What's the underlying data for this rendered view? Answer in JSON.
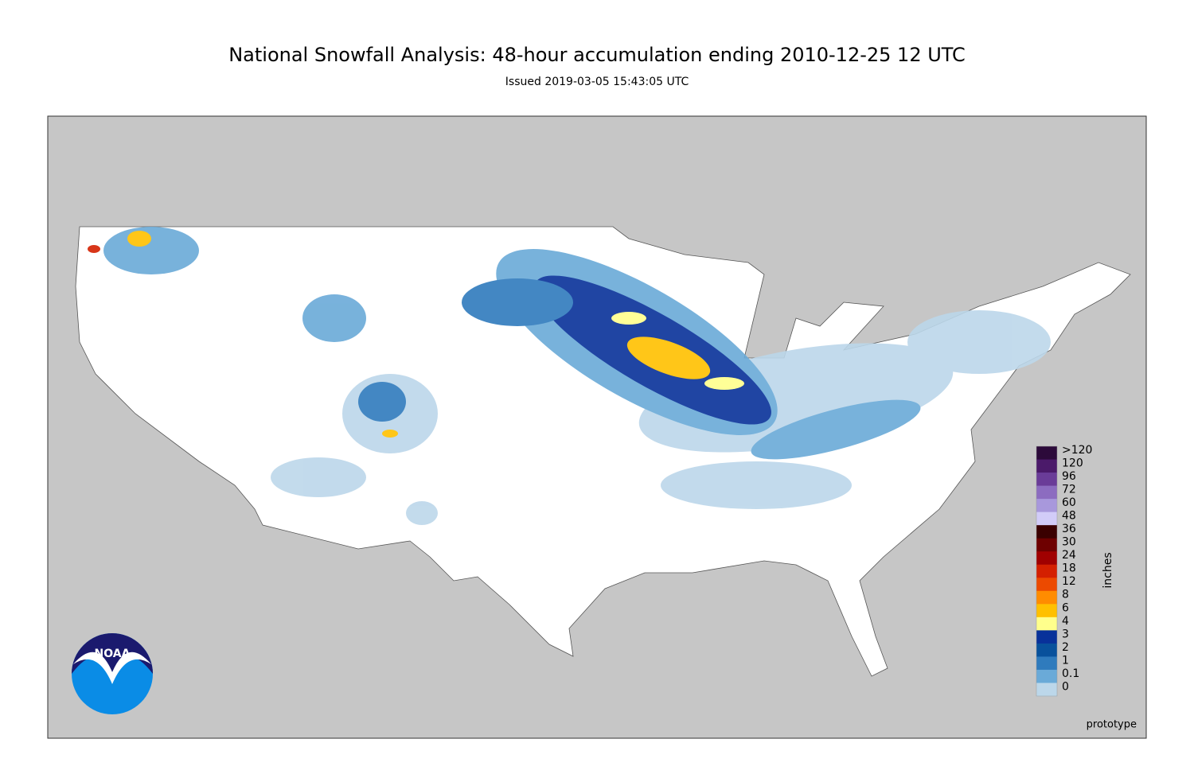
{
  "header": {
    "title": "National Snowfall Analysis: 48-hour accumulation ending 2010-12-25 12 UTC",
    "subtitle": "Issued 2019-03-05 15:43:05 UTC"
  },
  "legend": {
    "unit": "inches",
    "levels": [
      {
        "label": ">120",
        "color": "#2c0a3a"
      },
      {
        "label": "120",
        "color": "#4b1a6a"
      },
      {
        "label": "96",
        "color": "#6a3c98"
      },
      {
        "label": "72",
        "color": "#8c6cc0"
      },
      {
        "label": "60",
        "color": "#a898dc"
      },
      {
        "label": "48",
        "color": "#d2ccf8"
      },
      {
        "label": "36",
        "color": "#3a0000"
      },
      {
        "label": "30",
        "color": "#6e0000"
      },
      {
        "label": "24",
        "color": "#a00000"
      },
      {
        "label": "18",
        "color": "#d42000"
      },
      {
        "label": "12",
        "color": "#ec4a00"
      },
      {
        "label": "8",
        "color": "#ff8c00"
      },
      {
        "label": "6",
        "color": "#ffc000"
      },
      {
        "label": "4",
        "color": "#ffff8c"
      },
      {
        "label": "3",
        "color": "#08319a"
      },
      {
        "label": "2",
        "color": "#08519c"
      },
      {
        "label": "1",
        "color": "#2f7bbd"
      },
      {
        "label": "0.1",
        "color": "#6aaad8"
      },
      {
        "label": "0",
        "color": "#bcd7ea"
      }
    ]
  },
  "logo": {
    "text": "NOAA"
  },
  "footer": {
    "note": "prototype"
  }
}
